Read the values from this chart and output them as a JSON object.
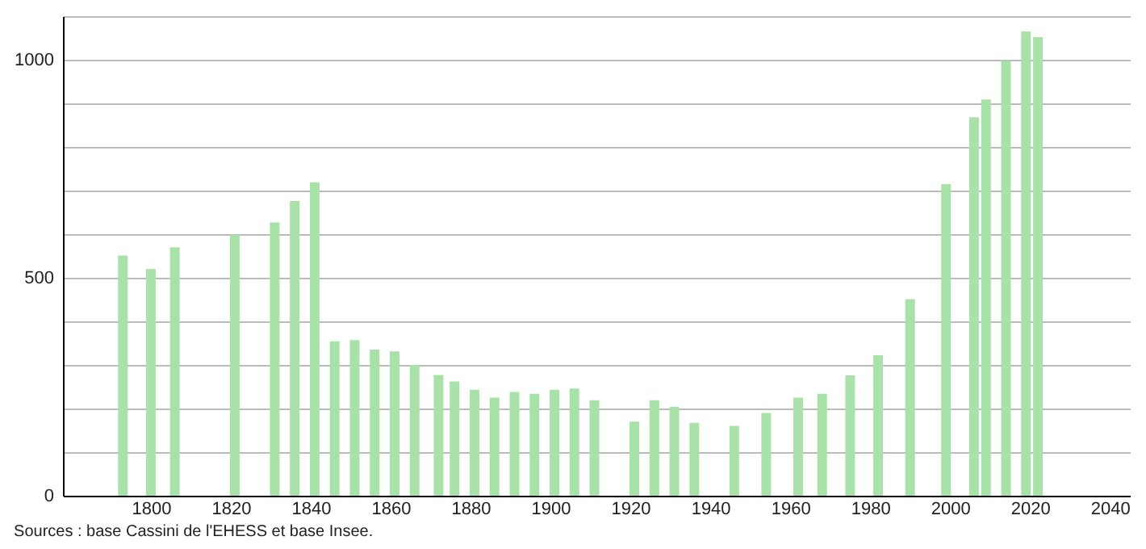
{
  "chart_data": {
    "type": "bar",
    "x": [
      1793,
      1800,
      1806,
      1821,
      1831,
      1836,
      1841,
      1846,
      1851,
      1856,
      1861,
      1866,
      1872,
      1876,
      1881,
      1886,
      1891,
      1896,
      1901,
      1906,
      1911,
      1921,
      1926,
      1931,
      1936,
      1946,
      1954,
      1962,
      1968,
      1975,
      1982,
      1990,
      1999,
      2006,
      2009,
      2014,
      2019,
      2022
    ],
    "values": [
      551,
      520,
      570,
      598,
      627,
      676,
      719,
      354,
      357,
      335,
      331,
      300,
      277,
      262,
      243,
      225,
      238,
      234,
      243,
      246,
      219,
      170,
      219,
      204,
      167,
      160,
      190,
      225,
      234,
      276,
      322,
      451,
      715,
      868,
      909,
      997,
      1065,
      1052
    ],
    "color": "#a8e2a8",
    "xlim": [
      1778,
      2045
    ],
    "xticks": [
      1800,
      1820,
      1840,
      1860,
      1880,
      1900,
      1920,
      1940,
      1960,
      1980,
      2000,
      2020,
      2040
    ],
    "ylim": [
      0,
      1100
    ],
    "yticks": [
      0,
      {
        "value": 100,
        "label": null
      },
      {
        "value": 200,
        "label": null
      },
      {
        "value": 300,
        "label": null
      },
      {
        "value": 400,
        "label": null
      },
      500,
      {
        "value": 600,
        "label": null
      },
      {
        "value": 700,
        "label": null
      },
      {
        "value": 800,
        "label": null
      },
      {
        "value": 900,
        "label": null
      },
      1000,
      {
        "value": 1100,
        "label": null
      }
    ],
    "grid": "y",
    "annotations": [
      "Sources : base Cassini de l'EHESS et base Insee."
    ]
  }
}
